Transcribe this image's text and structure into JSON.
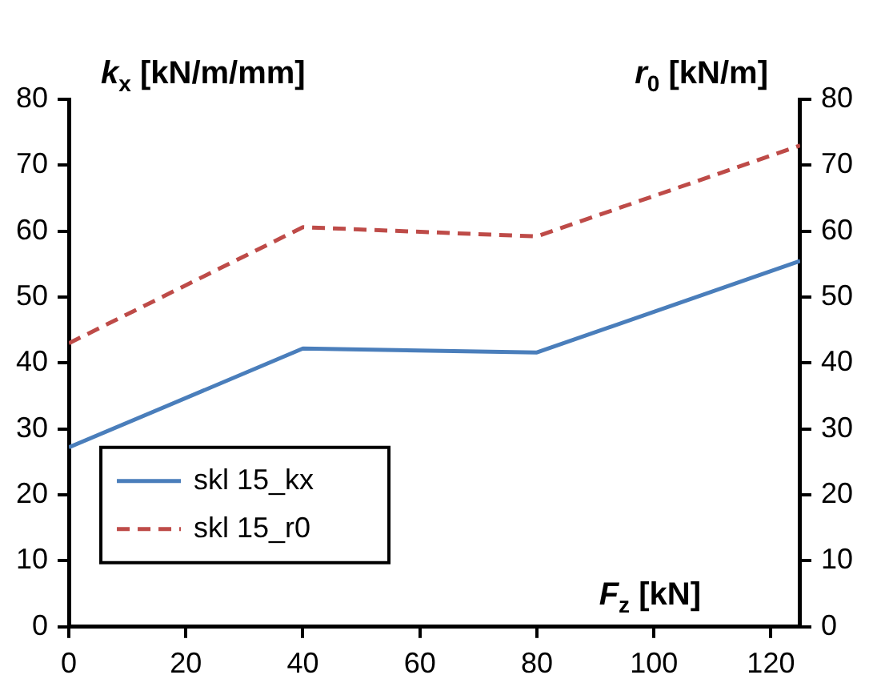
{
  "chart_data": {
    "type": "line",
    "xlabel": "F$_{z}$ [kN]",
    "ylabel": "k$_{x}$ [kN/m/mm]",
    "y2label": "r$_{0}$ [kN/m]",
    "x": [
      0,
      40,
      80,
      125
    ],
    "series": [
      {
        "name": "skl 15_kx",
        "color": "#4a7ebb",
        "values": [
          27.2,
          42.2,
          41.6,
          55.5
        ],
        "line_style": "solid"
      },
      {
        "name": "skl 15_r0",
        "color": "#be4b48",
        "values": [
          43,
          60.6,
          59.2,
          73
        ],
        "line_style": "dashed",
        "axis": "y2"
      }
    ],
    "xlim": [
      0,
      125
    ],
    "xticks": [
      0,
      20,
      40,
      60,
      80,
      100,
      120
    ],
    "ylim": [
      0,
      80
    ],
    "yticks": [
      0,
      10,
      20,
      30,
      40,
      50,
      60,
      70,
      80
    ],
    "y2lim": [
      0,
      80
    ],
    "y2ticks": [
      0,
      10,
      20,
      30,
      40,
      50,
      60,
      70,
      80
    ],
    "grid": false,
    "legend": "bottom left",
    "marker": "none"
  }
}
